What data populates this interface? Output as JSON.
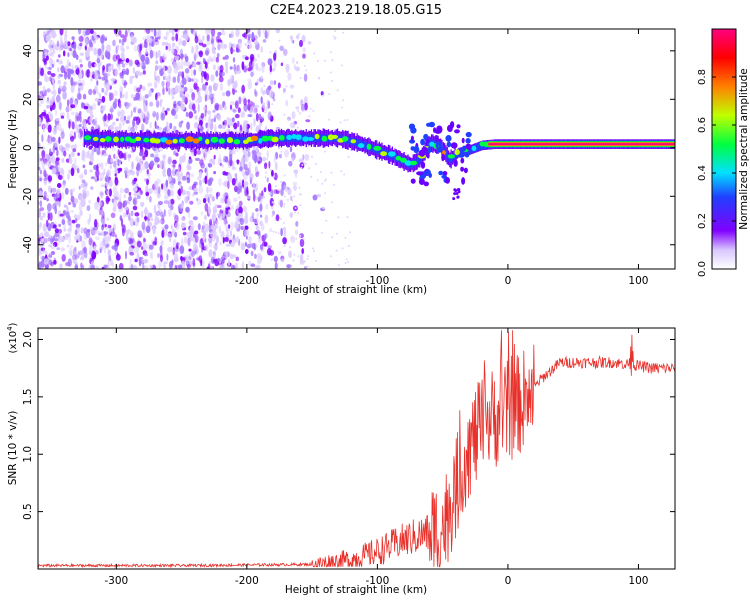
{
  "title": "C2E4.2023.219.18.05.G15",
  "chart_data": [
    {
      "type": "heatmap",
      "xlabel": "Height of straight line (km)",
      "ylabel": "Frequency (Hz)",
      "xlim": [
        -360,
        128
      ],
      "ylim": [
        -50,
        49
      ],
      "x_ticks": [
        -300,
        -200,
        -100,
        0,
        100
      ],
      "y_ticks": [
        -40,
        -20,
        0,
        20,
        40
      ],
      "colorbar": {
        "label": "Normalized spectral amplitude",
        "range": [
          0,
          1
        ],
        "ticks": [
          "0.0",
          "0.2",
          "0.4",
          "0.6",
          "0.8"
        ],
        "colors": [
          "#ffffff",
          "#d9c6ff",
          "#8000ff",
          "#2040ff",
          "#00e0ff",
          "#00ff40",
          "#c0ff00",
          "#ff8000",
          "#ff0000",
          "#ff0080"
        ]
      },
      "noise_region_x": [
        -360,
        -190
      ],
      "noise_fade_x": [
        -190,
        -140
      ],
      "ridge": [
        {
          "x": -325,
          "f": 4
        },
        {
          "x": -300,
          "f": 3.5
        },
        {
          "x": -250,
          "f": 3
        },
        {
          "x": -200,
          "f": 3
        },
        {
          "x": -180,
          "f": 4
        },
        {
          "x": -160,
          "f": 4
        },
        {
          "x": -130,
          "f": 4
        },
        {
          "x": -115,
          "f": 2
        },
        {
          "x": -100,
          "f": -1
        },
        {
          "x": -90,
          "f": -3
        },
        {
          "x": -75,
          "f": -7
        },
        {
          "x": -68,
          "f": -5
        },
        {
          "x": -60,
          "f": 2
        },
        {
          "x": -52,
          "f": 1
        },
        {
          "x": -45,
          "f": -5
        },
        {
          "x": -38,
          "f": -2
        },
        {
          "x": -30,
          "f": -1
        },
        {
          "x": -20,
          "f": 1
        },
        {
          "x": -10,
          "f": 1.5
        },
        {
          "x": 0,
          "f": 1.5
        },
        {
          "x": 128,
          "f": 1.5
        }
      ]
    },
    {
      "type": "line",
      "xlabel": "Height of straight line (km)",
      "ylabel": "SNR (10 * v/v)",
      "y_multiplier": "(x10^4)",
      "xlim": [
        -360,
        128
      ],
      "ylim": [
        0,
        2.1
      ],
      "x_ticks": [
        -300,
        -200,
        -100,
        0,
        100
      ],
      "y_ticks": [
        0.5,
        1.0,
        1.5,
        2.0
      ],
      "series": [
        {
          "color": "#e8312b",
          "points": [
            {
              "x": -360,
              "y": 0.03
            },
            {
              "x": -300,
              "y": 0.03
            },
            {
              "x": -250,
              "y": 0.03
            },
            {
              "x": -200,
              "y": 0.035
            },
            {
              "x": -150,
              "y": 0.04
            },
            {
              "x": -120,
              "y": 0.08
            },
            {
              "x": -100,
              "y": 0.15
            },
            {
              "x": -80,
              "y": 0.25
            },
            {
              "x": -65,
              "y": 0.3
            },
            {
              "x": -50,
              "y": 0.35
            },
            {
              "x": -40,
              "y": 0.7
            },
            {
              "x": -32,
              "y": 1.0
            },
            {
              "x": -25,
              "y": 1.15
            },
            {
              "x": -15,
              "y": 1.3
            },
            {
              "x": -5,
              "y": 1.35
            },
            {
              "x": 5,
              "y": 1.4
            },
            {
              "x": 15,
              "y": 1.5
            },
            {
              "x": 25,
              "y": 1.65
            },
            {
              "x": 40,
              "y": 1.8
            },
            {
              "x": 60,
              "y": 1.8
            },
            {
              "x": 80,
              "y": 1.8
            },
            {
              "x": 95,
              "y": 1.78
            },
            {
              "x": 110,
              "y": 1.75
            },
            {
              "x": 128,
              "y": 1.75
            }
          ]
        }
      ]
    }
  ]
}
